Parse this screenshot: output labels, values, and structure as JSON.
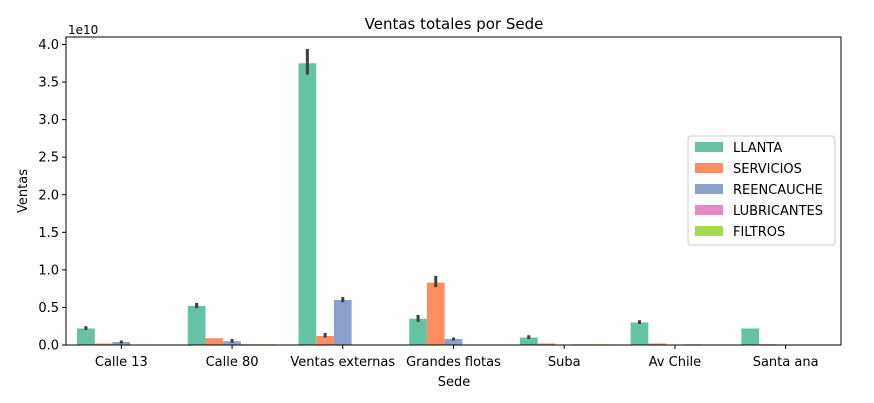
{
  "chart_data": {
    "type": "bar",
    "title": "Ventas totales por Sede",
    "xlabel": "Sede",
    "ylabel": "Ventas",
    "y_offset_label": "1e10",
    "ylim": [
      0,
      4.1
    ],
    "yticks": [
      "0.0",
      "0.5",
      "1.0",
      "1.5",
      "2.0",
      "2.5",
      "3.0",
      "3.5",
      "4.0"
    ],
    "ytick_values": [
      0,
      0.5,
      1.0,
      1.5,
      2.0,
      2.5,
      3.0,
      3.5,
      4.0
    ],
    "categories": [
      "Calle 13",
      "Calle 80",
      "Ventas externas",
      "Grandes flotas",
      "Suba",
      "Av Chile",
      "Santa ana"
    ],
    "legend_position": "center-right",
    "series": [
      {
        "name": "LLANTA",
        "color": "#66c2a5",
        "values": [
          0.22,
          0.52,
          3.75,
          0.35,
          0.1,
          0.3,
          0.22
        ],
        "err_low": [
          0.2,
          0.49,
          3.6,
          0.31,
          0.08,
          0.28,
          null
        ],
        "err_high": [
          0.25,
          0.56,
          3.94,
          0.4,
          0.13,
          0.33,
          null
        ]
      },
      {
        "name": "SERVICIOS",
        "color": "#fc8d62",
        "values": [
          0.02,
          0.09,
          0.12,
          0.83,
          0.02,
          0.02,
          0.01
        ],
        "err_low": [
          null,
          null,
          0.1,
          0.77,
          null,
          null,
          null
        ],
        "err_high": [
          null,
          null,
          0.16,
          0.92,
          null,
          null,
          null
        ]
      },
      {
        "name": "REENCAUCHE",
        "color": "#8da0cb",
        "values": [
          0.04,
          0.05,
          0.6,
          0.08,
          0.0,
          0.0,
          0.0
        ],
        "err_low": [
          0.02,
          0.03,
          0.57,
          0.06,
          null,
          null,
          null
        ],
        "err_high": [
          0.06,
          0.08,
          0.64,
          0.1,
          null,
          null,
          null
        ]
      },
      {
        "name": "LUBRICANTES",
        "color": "#e78ac3",
        "values": [
          0.0,
          0.01,
          0.0,
          0.0,
          0.01,
          0.01,
          0.0
        ],
        "err_low": [
          null,
          null,
          null,
          null,
          null,
          null,
          null
        ],
        "err_high": [
          null,
          null,
          null,
          null,
          null,
          null,
          null
        ]
      },
      {
        "name": "FILTROS",
        "color": "#a6d854",
        "values": [
          0.0,
          0.01,
          0.0,
          0.0,
          0.01,
          0.0,
          0.0
        ],
        "err_low": [
          null,
          null,
          null,
          null,
          null,
          null,
          null
        ],
        "err_high": [
          null,
          null,
          null,
          null,
          null,
          null,
          null
        ]
      }
    ]
  }
}
